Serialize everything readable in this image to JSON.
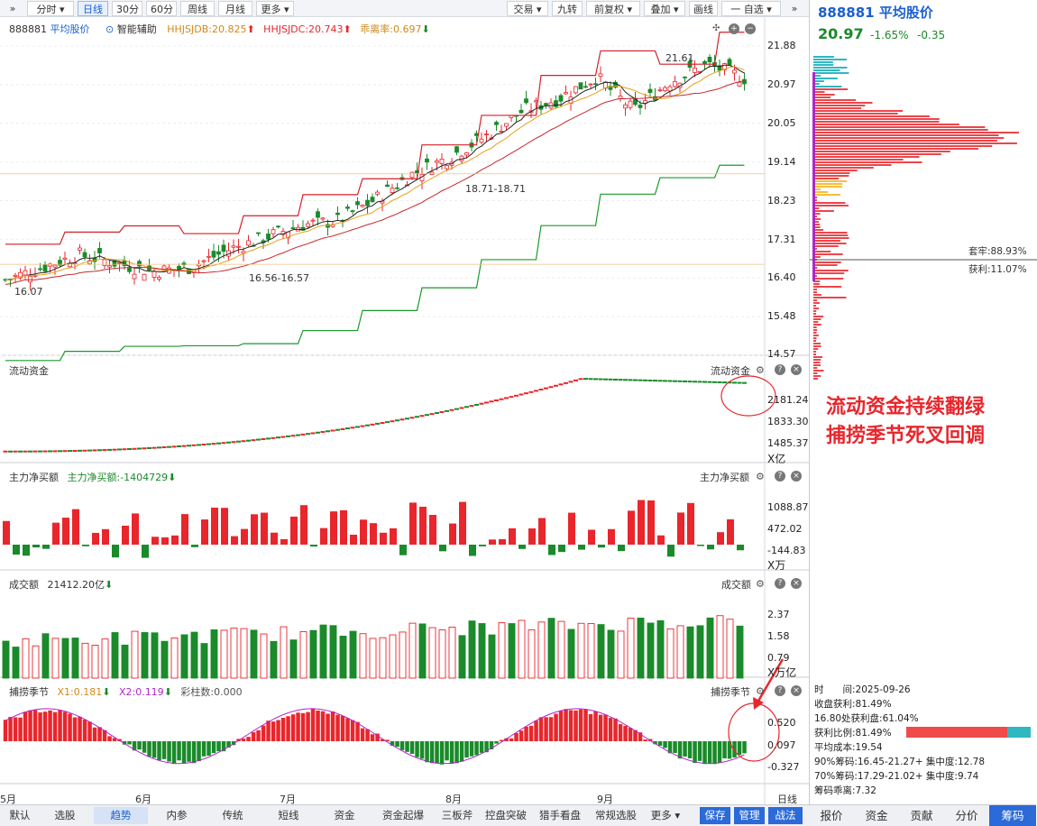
{
  "toolbar": {
    "expand_left": "»",
    "fenshi": "分时",
    "rixian": "日线",
    "m30": "30分",
    "m60": "60分",
    "zhouxian": "周线",
    "yuexian": "月线",
    "more": "更多",
    "jiaoyi": "交易",
    "jiuzhuan": "九转",
    "qianfuquan": "前复权",
    "diejia": "叠加",
    "huaxian": "画线",
    "zixuan": "一 自选",
    "collapse_right": "»"
  },
  "stock": {
    "code": "888881",
    "name": "平均股价",
    "price": "20.97",
    "pct": "-1.65%",
    "chg": "-0.35"
  },
  "main_panel": {
    "code": "888881",
    "name": "平均股价",
    "assist": "智能辅助",
    "ind1": "HHJSJDB:20.825",
    "ind2": "HHJSJDC:20.743",
    "ind3": "乖离率:0.697",
    "y_ticks": [
      "21.88",
      "20.97",
      "20.05",
      "19.14",
      "18.23",
      "17.31",
      "16.40",
      "15.48",
      "14.57"
    ],
    "ann_high": "21.61",
    "ann_mid": "18.71-18.71",
    "ann_low": "16.56-16.57",
    "ann_left": "16.07"
  },
  "flow_panel": {
    "title": "流动资金",
    "title_right": "流动资金",
    "y_ticks": [
      "2181.24",
      "1833.30",
      "1485.37"
    ],
    "unit": "X亿"
  },
  "net_panel": {
    "title": "主力净买额",
    "ind": "主力净买额:-1404729",
    "title_right": "主力净买额",
    "y_ticks": [
      "1088.87",
      "472.02",
      "-144.83"
    ],
    "unit": "X万"
  },
  "vol_panel": {
    "title": "成交额",
    "ind": "21412.20亿",
    "title_right": "成交额",
    "y_ticks": [
      "2.37",
      "1.58",
      "0.79"
    ],
    "unit": "X万亿"
  },
  "season_panel": {
    "title": "捕捞季节",
    "x1": "X1:0.181",
    "x2": "X2:0.119",
    "caizhu": "彩柱数:0.000",
    "title_right": "捕捞季节",
    "y_ticks": [
      "0.520",
      "0.097",
      "-0.327"
    ]
  },
  "x_axis": {
    "labels": [
      "5月",
      "6月",
      "7月",
      "8月",
      "9月"
    ],
    "period": "日线"
  },
  "annotation": {
    "line1": "流动资金持续翻绿",
    "line2": "捕捞季节死叉回调"
  },
  "chip": {
    "taolao": "套牢:88.93%",
    "huoli": "获利:11.07%",
    "time_label": "时　　间:2025-09-26",
    "profit": "收盘获利:81.49%",
    "profit_at": "16.80处获利盘:61.04%",
    "ratio": "获利比例:81.49%",
    "avg_cost": "平均成本:19.54",
    "c90": "90%筹码:16.45-21.27+ 集中度:12.78",
    "c70": "70%筹码:17.29-21.02+ 集中度:9.74",
    "deviation": "筹码乖离:7.32",
    "ratio_value": 0.8149
  },
  "bottom_tabs": [
    "默认",
    "选股",
    "趋势",
    "内参",
    "传统",
    "短线",
    "资金",
    "资金起爆",
    "三板斧",
    "控盘突破",
    "猎手看盘",
    "常规选股",
    "更多",
    "保存",
    "管理",
    "战法"
  ],
  "right_tabs": [
    "报价",
    "资金",
    "贡献",
    "分价",
    "筹码"
  ],
  "colors": {
    "up": "#e8262c",
    "down": "#1a8a2a",
    "blue": "#1a5fd0",
    "chip_cyan": "#2fb8c0",
    "chip_red": "#e8262c",
    "magenta": "#b026c8"
  },
  "chart_data": {
    "type": "candlestick",
    "x_labels": [
      "5月",
      "6月",
      "7月",
      "8月",
      "9月"
    ],
    "price_range": [
      14.57,
      21.88
    ],
    "close_trend": [
      16.2,
      16.5,
      16.8,
      16.6,
      16.4,
      16.5,
      16.9,
      17.2,
      17.5,
      17.6,
      18.1,
      18.7,
      19.1,
      19.6,
      20.2,
      20.5,
      21.0,
      20.2,
      20.9,
      21.3,
      20.97
    ],
    "flow_range": [
      1485.37,
      2181.24
    ],
    "net_range": [
      -144.83,
      1088.87
    ],
    "vol_range": [
      0,
      2.37
    ],
    "season_range": [
      -0.327,
      0.52
    ]
  }
}
